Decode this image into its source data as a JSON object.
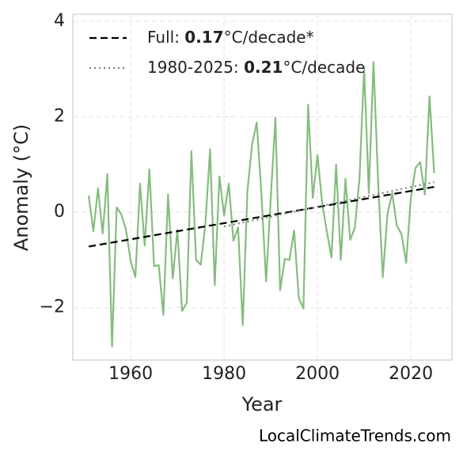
{
  "chart_data": {
    "type": "line",
    "xlabel": "Year",
    "ylabel": "Anomaly (°C)",
    "source": "LocalClimateTrends.com",
    "xlim": [
      1947.6,
      2028.8
    ],
    "ylim": [
      -3.1,
      4.15
    ],
    "xticks": [
      1960,
      1980,
      2000,
      2020
    ],
    "yticks": [
      {
        "value": -2,
        "label": "−2"
      },
      0,
      2,
      4
    ],
    "grid": true,
    "legend_position": "upper left",
    "series": [
      {
        "color": "#86bc80",
        "dash": "solid",
        "x": [
          1951,
          1952,
          1953,
          1954,
          1955,
          1956,
          1957,
          1958,
          1959,
          1960,
          1961,
          1962,
          1963,
          1964,
          1965,
          1966,
          1967,
          1968,
          1969,
          1970,
          1971,
          1972,
          1973,
          1974,
          1975,
          1976,
          1977,
          1978,
          1979,
          1980,
          1981,
          1982,
          1983,
          1984,
          1985,
          1986,
          1987,
          1988,
          1989,
          1990,
          1991,
          1992,
          1993,
          1994,
          1995,
          1996,
          1997,
          1998,
          1999,
          2000,
          2001,
          2002,
          2003,
          2004,
          2005,
          2006,
          2007,
          2008,
          2009,
          2010,
          2011,
          2012,
          2013,
          2014,
          2015,
          2016,
          2017,
          2018,
          2019,
          2020,
          2021,
          2022,
          2023,
          2024,
          2025
        ],
        "values": [
          0.35,
          -0.4,
          0.5,
          -0.45,
          0.8,
          -2.82,
          0.1,
          -0.05,
          -0.37,
          -1.03,
          -1.36,
          0.6,
          -0.7,
          0.9,
          -1.13,
          -1.11,
          -2.15,
          0.37,
          -1.39,
          -0.37,
          -2.07,
          -1.9,
          1.28,
          -1.0,
          -1.1,
          -0.24,
          1.32,
          -1.53,
          0.75,
          -0.07,
          0.6,
          -0.6,
          -0.32,
          -2.37,
          0.45,
          1.42,
          1.88,
          0.37,
          -1.45,
          0.3,
          1.98,
          -1.64,
          -0.98,
          -1.0,
          -0.38,
          -1.8,
          -2.02,
          2.25,
          0.3,
          1.2,
          0.2,
          -0.4,
          -0.95,
          1.0,
          -1.0,
          0.7,
          -0.58,
          -0.33,
          0.7,
          3.03,
          0.4,
          3.15,
          0.62,
          -1.36,
          -0.03,
          0.4,
          -0.28,
          -0.46,
          -1.06,
          0.3,
          0.93,
          1.05,
          0.37,
          2.43,
          0.82
        ]
      },
      {
        "name": "Full: ",
        "rate": "0.17",
        "unit": "°C/decade*",
        "color": "#000000",
        "dash": "dashed",
        "x": [
          1951,
          2025
        ],
        "values": [
          -0.72,
          0.53
        ]
      },
      {
        "name": "1980-2025: ",
        "rate": "0.21",
        "unit": "°C/decade",
        "color": "#808080",
        "dash": "dotted",
        "x": [
          1980,
          2025
        ],
        "values": [
          -0.3,
          0.63
        ]
      }
    ]
  }
}
